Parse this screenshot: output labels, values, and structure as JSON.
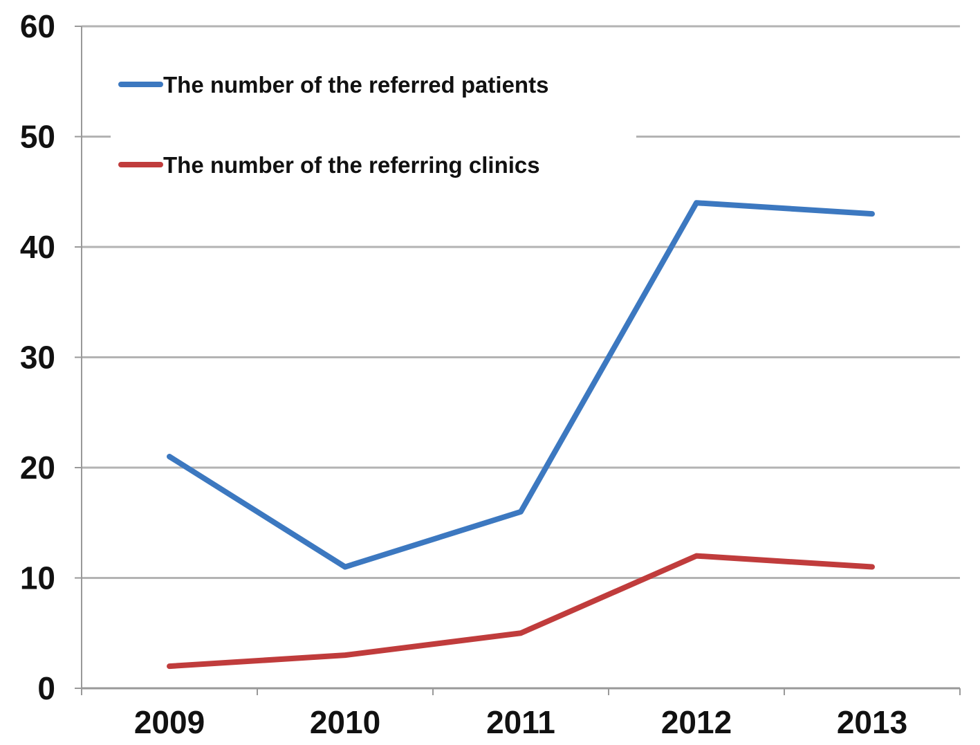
{
  "chart_data": {
    "type": "line",
    "categories": [
      "2009",
      "2010",
      "2011",
      "2012",
      "2013"
    ],
    "series": [
      {
        "name": "The number of the referred patients",
        "color": "#3c78c0",
        "values": [
          21,
          11,
          16,
          44,
          43
        ]
      },
      {
        "name": "The number of the referring clinics",
        "color": "#c03c3c",
        "values": [
          2,
          3,
          5,
          12,
          11
        ]
      }
    ],
    "ylim": [
      0,
      60
    ],
    "yticks": [
      "0",
      "10",
      "20",
      "30",
      "40",
      "50",
      "60"
    ],
    "grid": true,
    "legend_position": "top-left",
    "title": "",
    "xlabel": "",
    "ylabel": ""
  }
}
